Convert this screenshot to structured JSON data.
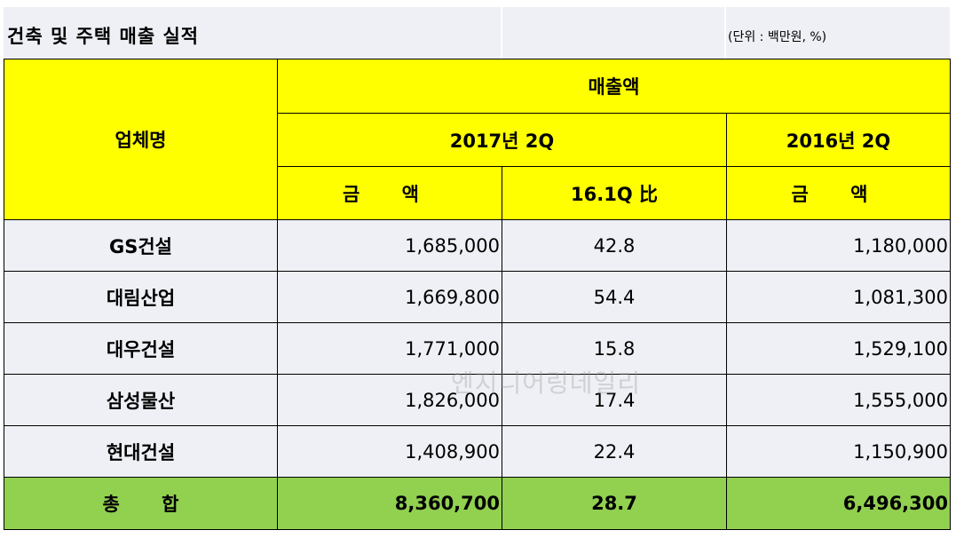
{
  "header": {
    "title": "건축 및 주택 매출 실적",
    "unit": "(단위 : 백만원, %)"
  },
  "table": {
    "company_header": "업체명",
    "sales_header": "매출액",
    "period_2017": "2017년 2Q",
    "period_2016": "2016년 2Q",
    "amount_label": "금 액",
    "ratio_label": "16.1Q 比",
    "rows": [
      {
        "name": "GS건설",
        "amount_2017": "1,685,000",
        "ratio": "42.8",
        "amount_2016": "1,180,000"
      },
      {
        "name": "대림산업",
        "amount_2017": "1,669,800",
        "ratio": "54.4",
        "amount_2016": "1,081,300"
      },
      {
        "name": "대우건설",
        "amount_2017": "1,771,000",
        "ratio": "15.8",
        "amount_2016": "1,529,100"
      },
      {
        "name": "삼성물산",
        "amount_2017": "1,826,000",
        "ratio": "17.4",
        "amount_2016": "1,555,000"
      },
      {
        "name": "현대건설",
        "amount_2017": "1,408,900",
        "ratio": "22.4",
        "amount_2016": "1,150,900"
      }
    ],
    "total": {
      "name": "총 합",
      "amount_2017": "8,360,700",
      "ratio": "28.7",
      "amount_2016": "6,496,300"
    }
  },
  "watermark": "엔지니어링데일리",
  "colors": {
    "header_fill": "#ffff00",
    "row_fill": "#eef0f5",
    "total_fill": "#92d050"
  }
}
